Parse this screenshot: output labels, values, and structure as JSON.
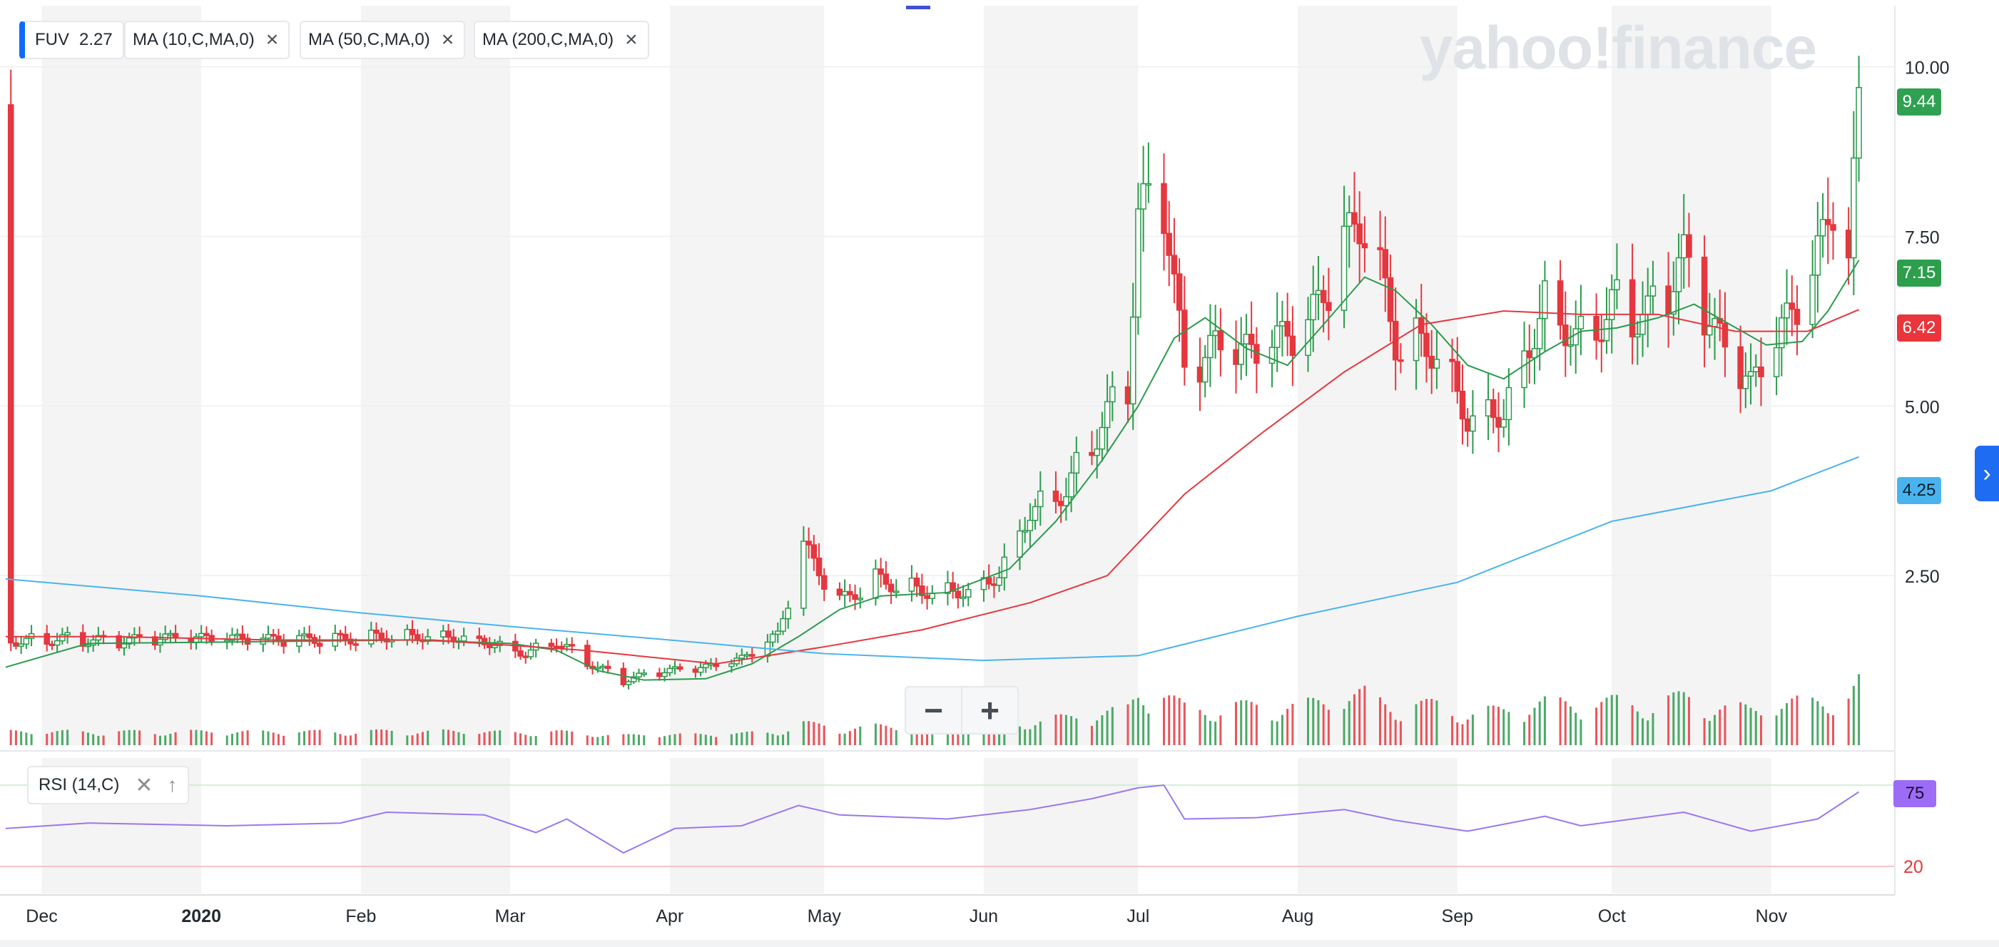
{
  "brand": "yahoo!finance",
  "legend": {
    "ticker": "FUV",
    "ticker_value": "2.27",
    "ma10": "MA (10,C,MA,0)",
    "ma50": "MA (50,C,MA,0)",
    "ma200": "MA (200,C,MA,0)",
    "close_icon": "close-icon"
  },
  "price_tags": [
    {
      "label": "9.44",
      "color": "#30a152"
    },
    {
      "label": "7.15",
      "color": "#2d9e4c"
    },
    {
      "label": "6.42",
      "color": "#e9353b"
    },
    {
      "label": "4.25",
      "color": "#4ab3ee"
    }
  ],
  "rsi": {
    "label": "RSI (14,C)",
    "value_tag": "75",
    "tag_color": "#9c6cf7",
    "level": "20"
  },
  "zoom": {
    "minus": "−",
    "plus": "+"
  },
  "colors": {
    "up": "#2b9b4c",
    "down": "#e5373f",
    "ma10": "#2b9b4c",
    "ma50": "#e5373f",
    "ma200": "#4ab3ee",
    "rsi": "#9a78ee"
  },
  "chart_data": {
    "type": "candlestick",
    "title": "",
    "y_ticks": [
      "10.00",
      "7.50",
      "5.00",
      "2.50"
    ],
    "ylim": [
      0,
      10.9
    ],
    "x_ticks": [
      "Dec",
      "2020",
      "Feb",
      "Mar",
      "Apr",
      "May",
      "Jun",
      "Jul",
      "Aug",
      "Sep",
      "Oct",
      "Nov"
    ],
    "x_range": [
      "2019-11-24",
      "2020-11-20"
    ],
    "grid": true,
    "series_close": [
      [
        "2019-11-25",
        1.55
      ],
      [
        "2019-12-05",
        1.57
      ],
      [
        "2019-12-15",
        1.52
      ],
      [
        "2019-12-25",
        1.56
      ],
      [
        "2020-01-06",
        1.55
      ],
      [
        "2020-01-16",
        1.54
      ],
      [
        "2020-01-28",
        1.56
      ],
      [
        "2020-02-06",
        1.62
      ],
      [
        "2020-02-18",
        1.63
      ],
      [
        "2020-02-25",
        1.55
      ],
      [
        "2020-03-04",
        1.37
      ],
      [
        "2020-03-10",
        1.55
      ],
      [
        "2020-03-16",
        1.23
      ],
      [
        "2020-03-23",
        0.95
      ],
      [
        "2020-03-30",
        1.07
      ],
      [
        "2020-04-08",
        1.13
      ],
      [
        "2020-04-15",
        1.25
      ],
      [
        "2020-04-22",
        1.6
      ],
      [
        "2020-04-27",
        2.9
      ],
      [
        "2020-05-04",
        2.1
      ],
      [
        "2020-05-11",
        2.45
      ],
      [
        "2020-05-20",
        2.3
      ],
      [
        "2020-05-29",
        2.3
      ],
      [
        "2020-06-04",
        2.55
      ],
      [
        "2020-06-10",
        3.5
      ],
      [
        "2020-06-17",
        3.8
      ],
      [
        "2020-06-22",
        4.5
      ],
      [
        "2020-06-29",
        5.35
      ],
      [
        "2020-07-01",
        7.8
      ],
      [
        "2020-07-06",
        8.0
      ],
      [
        "2020-07-10",
        5.4
      ],
      [
        "2020-07-16",
        5.8
      ],
      [
        "2020-07-23",
        5.7
      ],
      [
        "2020-08-03",
        6.1
      ],
      [
        "2020-08-10",
        7.3
      ],
      [
        "2020-08-14",
        7.8
      ],
      [
        "2020-08-20",
        6.0
      ],
      [
        "2020-08-28",
        5.9
      ],
      [
        "2020-09-03",
        4.9
      ],
      [
        "2020-09-10",
        5.0
      ],
      [
        "2020-09-18",
        6.6
      ],
      [
        "2020-09-25",
        6.0
      ],
      [
        "2020-10-01",
        6.5
      ],
      [
        "2020-10-08",
        6.3
      ],
      [
        "2020-10-15",
        7.1
      ],
      [
        "2020-10-21",
        6.0
      ],
      [
        "2020-10-28",
        5.2
      ],
      [
        "2020-11-02",
        5.9
      ],
      [
        "2020-11-09",
        6.8
      ],
      [
        "2020-11-13",
        8.0
      ],
      [
        "2020-11-16",
        6.9
      ],
      [
        "2020-11-18",
        9.44
      ]
    ],
    "series": [
      {
        "name": "MA (10,C,MA,0)",
        "values": [
          [
            "2019-11-24",
            1.15
          ],
          [
            "2019-12-10",
            1.5
          ],
          [
            "2020-01-06",
            1.52
          ],
          [
            "2020-02-10",
            1.55
          ],
          [
            "2020-03-01",
            1.5
          ],
          [
            "2020-03-10",
            1.4
          ],
          [
            "2020-03-18",
            1.1
          ],
          [
            "2020-03-27",
            0.96
          ],
          [
            "2020-04-08",
            0.98
          ],
          [
            "2020-04-17",
            1.2
          ],
          [
            "2020-04-26",
            1.6
          ],
          [
            "2020-05-04",
            2.0
          ],
          [
            "2020-05-12",
            2.2
          ],
          [
            "2020-05-25",
            2.25
          ],
          [
            "2020-06-06",
            2.6
          ],
          [
            "2020-06-15",
            3.3
          ],
          [
            "2020-06-24",
            4.2
          ],
          [
            "2020-07-01",
            5.0
          ],
          [
            "2020-07-08",
            6.0
          ],
          [
            "2020-07-14",
            6.3
          ],
          [
            "2020-07-22",
            5.85
          ],
          [
            "2020-07-30",
            5.6
          ],
          [
            "2020-08-06",
            6.2
          ],
          [
            "2020-08-14",
            6.9
          ],
          [
            "2020-08-20",
            6.7
          ],
          [
            "2020-08-27",
            6.2
          ],
          [
            "2020-09-03",
            5.6
          ],
          [
            "2020-09-10",
            5.4
          ],
          [
            "2020-09-18",
            5.8
          ],
          [
            "2020-09-25",
            6.1
          ],
          [
            "2020-10-02",
            6.15
          ],
          [
            "2020-10-10",
            6.3
          ],
          [
            "2020-10-17",
            6.5
          ],
          [
            "2020-10-24",
            6.2
          ],
          [
            "2020-10-31",
            5.9
          ],
          [
            "2020-11-07",
            5.95
          ],
          [
            "2020-11-12",
            6.4
          ],
          [
            "2020-11-18",
            7.15
          ]
        ]
      },
      {
        "name": "MA (50,C,MA,0)",
        "values": [
          [
            "2019-11-24",
            1.6
          ],
          [
            "2019-12-15",
            1.6
          ],
          [
            "2020-01-15",
            1.55
          ],
          [
            "2020-02-15",
            1.55
          ],
          [
            "2020-03-15",
            1.4
          ],
          [
            "2020-04-10",
            1.2
          ],
          [
            "2020-05-01",
            1.45
          ],
          [
            "2020-05-20",
            1.7
          ],
          [
            "2020-06-10",
            2.1
          ],
          [
            "2020-06-25",
            2.5
          ],
          [
            "2020-07-10",
            3.7
          ],
          [
            "2020-07-25",
            4.6
          ],
          [
            "2020-08-10",
            5.5
          ],
          [
            "2020-08-25",
            6.2
          ],
          [
            "2020-09-10",
            6.4
          ],
          [
            "2020-09-25",
            6.35
          ],
          [
            "2020-10-10",
            6.35
          ],
          [
            "2020-10-25",
            6.1
          ],
          [
            "2020-11-08",
            6.1
          ],
          [
            "2020-11-18",
            6.42
          ]
        ]
      },
      {
        "name": "MA (200,C,MA,0)",
        "values": [
          [
            "2019-11-24",
            2.45
          ],
          [
            "2020-01-01",
            2.2
          ],
          [
            "2020-02-01",
            1.95
          ],
          [
            "2020-03-01",
            1.75
          ],
          [
            "2020-04-01",
            1.55
          ],
          [
            "2020-05-01",
            1.35
          ],
          [
            "2020-06-01",
            1.25
          ],
          [
            "2020-07-01",
            1.32
          ],
          [
            "2020-08-01",
            1.9
          ],
          [
            "2020-09-01",
            2.4
          ],
          [
            "2020-10-01",
            3.3
          ],
          [
            "2020-11-01",
            3.75
          ],
          [
            "2020-11-18",
            4.25
          ]
        ]
      }
    ],
    "rsi": {
      "ticks": [
        "20"
      ],
      "values": [
        [
          "2019-11-24",
          48
        ],
        [
          "2019-12-10",
          52
        ],
        [
          "2020-01-06",
          50
        ],
        [
          "2020-01-28",
          52
        ],
        [
          "2020-02-06",
          60
        ],
        [
          "2020-02-25",
          58
        ],
        [
          "2020-03-06",
          45
        ],
        [
          "2020-03-12",
          55
        ],
        [
          "2020-03-23",
          30
        ],
        [
          "2020-04-02",
          48
        ],
        [
          "2020-04-15",
          50
        ],
        [
          "2020-04-26",
          65
        ],
        [
          "2020-05-04",
          58
        ],
        [
          "2020-05-25",
          55
        ],
        [
          "2020-06-10",
          62
        ],
        [
          "2020-06-22",
          70
        ],
        [
          "2020-07-01",
          78
        ],
        [
          "2020-07-06",
          80
        ],
        [
          "2020-07-10",
          55
        ],
        [
          "2020-07-24",
          56
        ],
        [
          "2020-08-10",
          62
        ],
        [
          "2020-08-20",
          54
        ],
        [
          "2020-09-03",
          46
        ],
        [
          "2020-09-18",
          57
        ],
        [
          "2020-09-25",
          50
        ],
        [
          "2020-10-15",
          60
        ],
        [
          "2020-10-28",
          46
        ],
        [
          "2020-11-10",
          55
        ],
        [
          "2020-11-18",
          75
        ]
      ]
    }
  }
}
